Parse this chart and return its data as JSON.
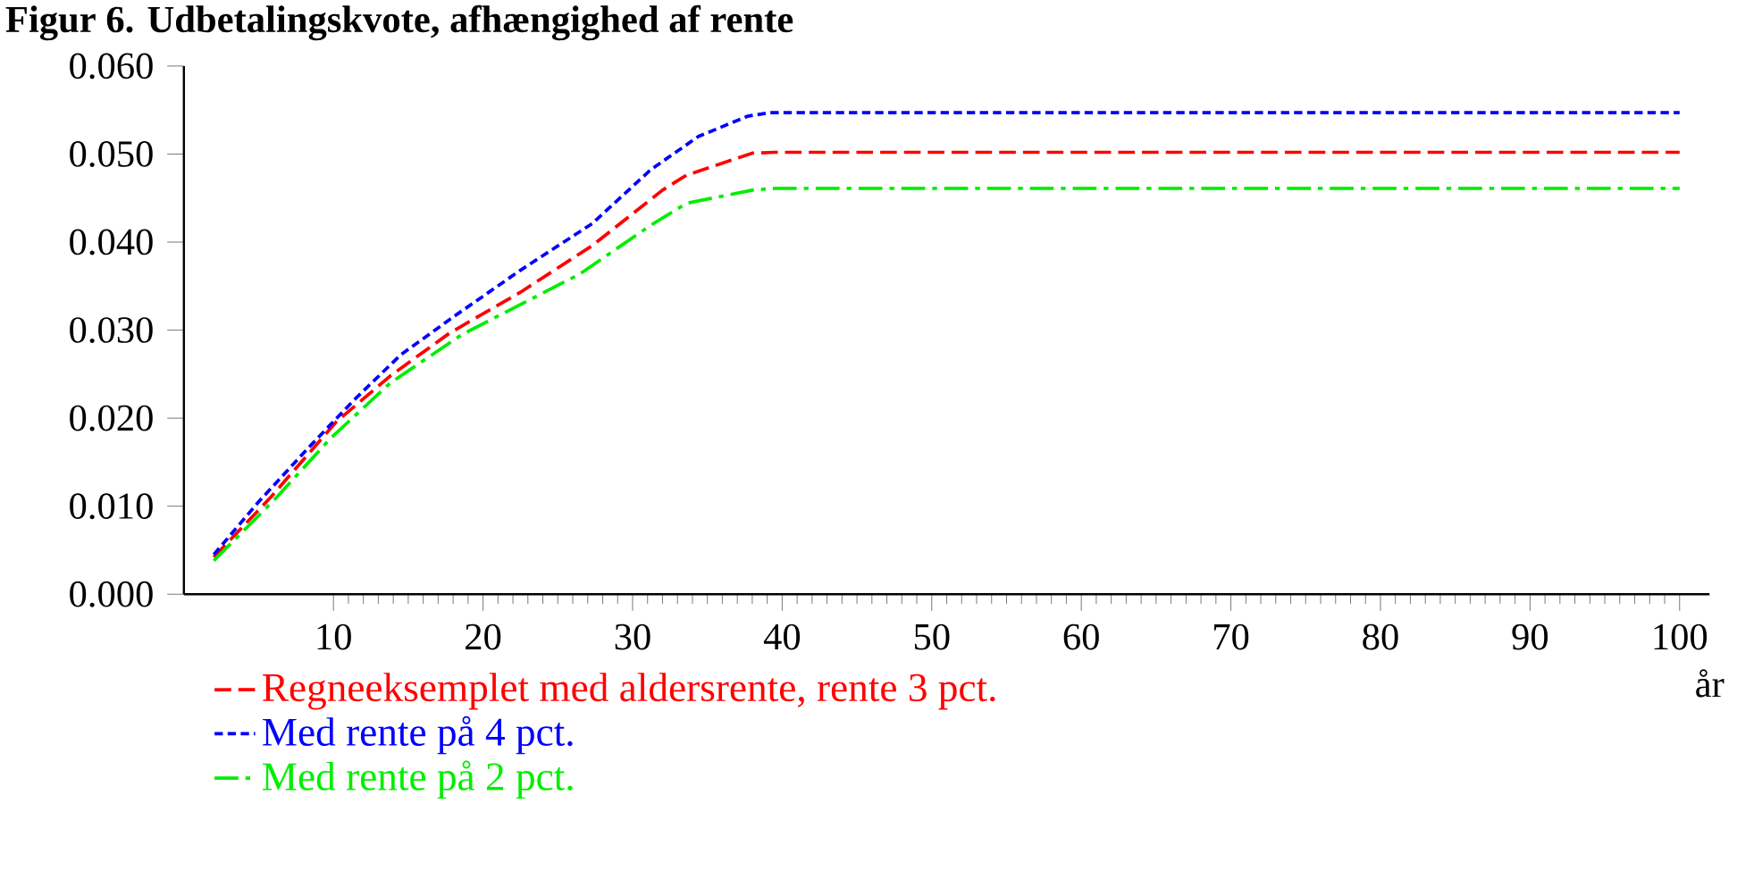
{
  "chart_data": {
    "type": "line",
    "title": "Figur 6. Udbetalingskvote, afhængighed af rente",
    "xlabel": "år",
    "xlim": [
      0,
      102
    ],
    "xticks": [
      10,
      20,
      30,
      40,
      50,
      60,
      70,
      80,
      90,
      100
    ],
    "ylim": [
      0,
      0.06
    ],
    "yticks": [
      {
        "value": 0,
        "label": "0.000"
      },
      {
        "value": 0.01,
        "label": "0.010"
      },
      {
        "value": 0.02,
        "label": "0.020"
      },
      {
        "value": 0.03,
        "label": "0.030"
      },
      {
        "value": 0.04,
        "label": "0.040"
      },
      {
        "value": 0.05,
        "label": "0.050"
      },
      {
        "value": 0.06,
        "label": "0.060"
      }
    ],
    "grid": false,
    "legend": "bottom",
    "marker": "none",
    "series": [
      {
        "name": "Regneeksemplet med aldersrente, rente 3 pct.",
        "color": "#ff0000",
        "line_style": "dashed",
        "x": [
          2,
          5.8,
          10.2,
          13.8,
          17.8,
          22.5,
          27.3,
          32,
          33.6,
          38,
          39.5,
          100
        ],
        "values": [
          0.0042,
          0.011,
          0.0196,
          0.0248,
          0.0297,
          0.0343,
          0.0396,
          0.0459,
          0.0476,
          0.0501,
          0.0502,
          0.0502
        ]
      },
      {
        "name": "Med rente på 4  pct.",
        "color": "#0000ff",
        "line_style": "dotted",
        "x": [
          2,
          5,
          8.2,
          11.4,
          14.5,
          18.1,
          22.5,
          27.3,
          31.2,
          34.4,
          37.7,
          39.2,
          100
        ],
        "values": [
          0.0045,
          0.0105,
          0.0164,
          0.0221,
          0.0272,
          0.0316,
          0.0368,
          0.0421,
          0.0482,
          0.052,
          0.0543,
          0.0547,
          0.0547
        ]
      },
      {
        "name": "Med rente på 2 pct.",
        "color": "#00ee00",
        "line_style": "dashdot",
        "x": [
          2,
          6.2,
          9.8,
          13.8,
          18.6,
          26.5,
          31.2,
          33.6,
          38,
          39.5,
          100
        ],
        "values": [
          0.0038,
          0.011,
          0.0177,
          0.024,
          0.0295,
          0.0364,
          0.0419,
          0.0444,
          0.0459,
          0.0461,
          0.0461
        ]
      }
    ]
  }
}
